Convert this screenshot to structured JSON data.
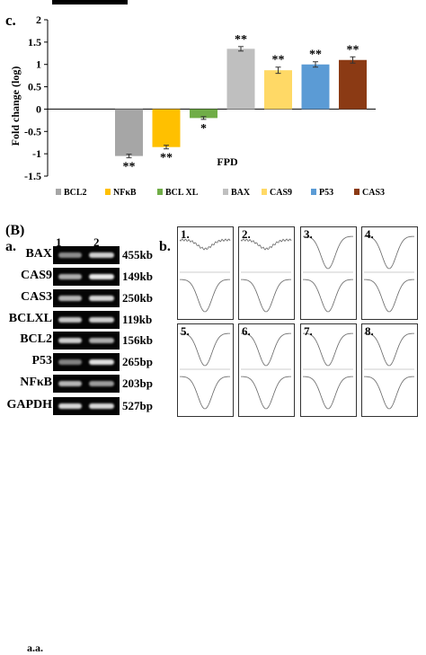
{
  "chart_data": {
    "type": "bar",
    "panel_label": "c.",
    "title": "",
    "xlabel": "FPD",
    "ylabel": "Fold change (log)",
    "ylim": [
      -1.5,
      2
    ],
    "yticks": [
      "2",
      "1.5",
      "1",
      "0.5",
      "0",
      "-0.5",
      "-1",
      "-1.5"
    ],
    "ytick_values": [
      2,
      1.5,
      1,
      0.5,
      0,
      -0.5,
      -1,
      -1.5
    ],
    "grid": false,
    "legend_position": "bottom",
    "categories": [
      "BCL2",
      "NFκB",
      "BCL XL",
      "BAX",
      "CAS9",
      "P53",
      "CAS3"
    ],
    "values": [
      -1.05,
      -0.85,
      -0.2,
      1.35,
      0.87,
      1.0,
      1.1
    ],
    "errors": [
      0.04,
      0.04,
      0.03,
      0.05,
      0.07,
      0.06,
      0.07
    ],
    "significance": [
      "**",
      "**",
      "*",
      "**",
      "**",
      "**",
      "**"
    ],
    "colors": [
      "#a6a6a6",
      "#ffc000",
      "#70ad47",
      "#bfbfbf",
      "#ffd966",
      "#5b9bd5",
      "#8b3a14"
    ],
    "series_labels": [
      "BCL2",
      "NFκB",
      "BCL XL",
      "BAX",
      "CAS9",
      "P53",
      "CAS3"
    ]
  },
  "gel": {
    "section_label": "(B)",
    "panel_label": "a.",
    "lane_labels": [
      "1",
      "2"
    ],
    "rows": [
      {
        "gene": "BAX",
        "size": "455kb",
        "lane1": 0.35,
        "lane2": 0.75
      },
      {
        "gene": "CAS9",
        "size": "149kb",
        "lane1": 0.55,
        "lane2": 0.9
      },
      {
        "gene": "CAS3",
        "size": "250kb",
        "lane1": 0.6,
        "lane2": 0.8
      },
      {
        "gene": "BCLXL",
        "size": "119kb",
        "lane1": 0.7,
        "lane2": 0.75
      },
      {
        "gene": "BCL2",
        "size": "156kb",
        "lane1": 0.75,
        "lane2": 0.55
      },
      {
        "gene": "P53",
        "size": "265bp",
        "lane1": 0.3,
        "lane2": 0.85
      },
      {
        "gene": "NFκB",
        "size": "203bp",
        "lane1": 0.6,
        "lane2": 0.45
      },
      {
        "gene": "GAPDH",
        "size": "527bp",
        "lane1": 0.8,
        "lane2": 0.8
      }
    ],
    "footer_label": "a.a."
  },
  "profiles": {
    "panel_label": "b.",
    "panels": [
      "1.",
      "2.",
      "3.",
      "4.",
      "5.",
      "6.",
      "7.",
      "8."
    ]
  }
}
